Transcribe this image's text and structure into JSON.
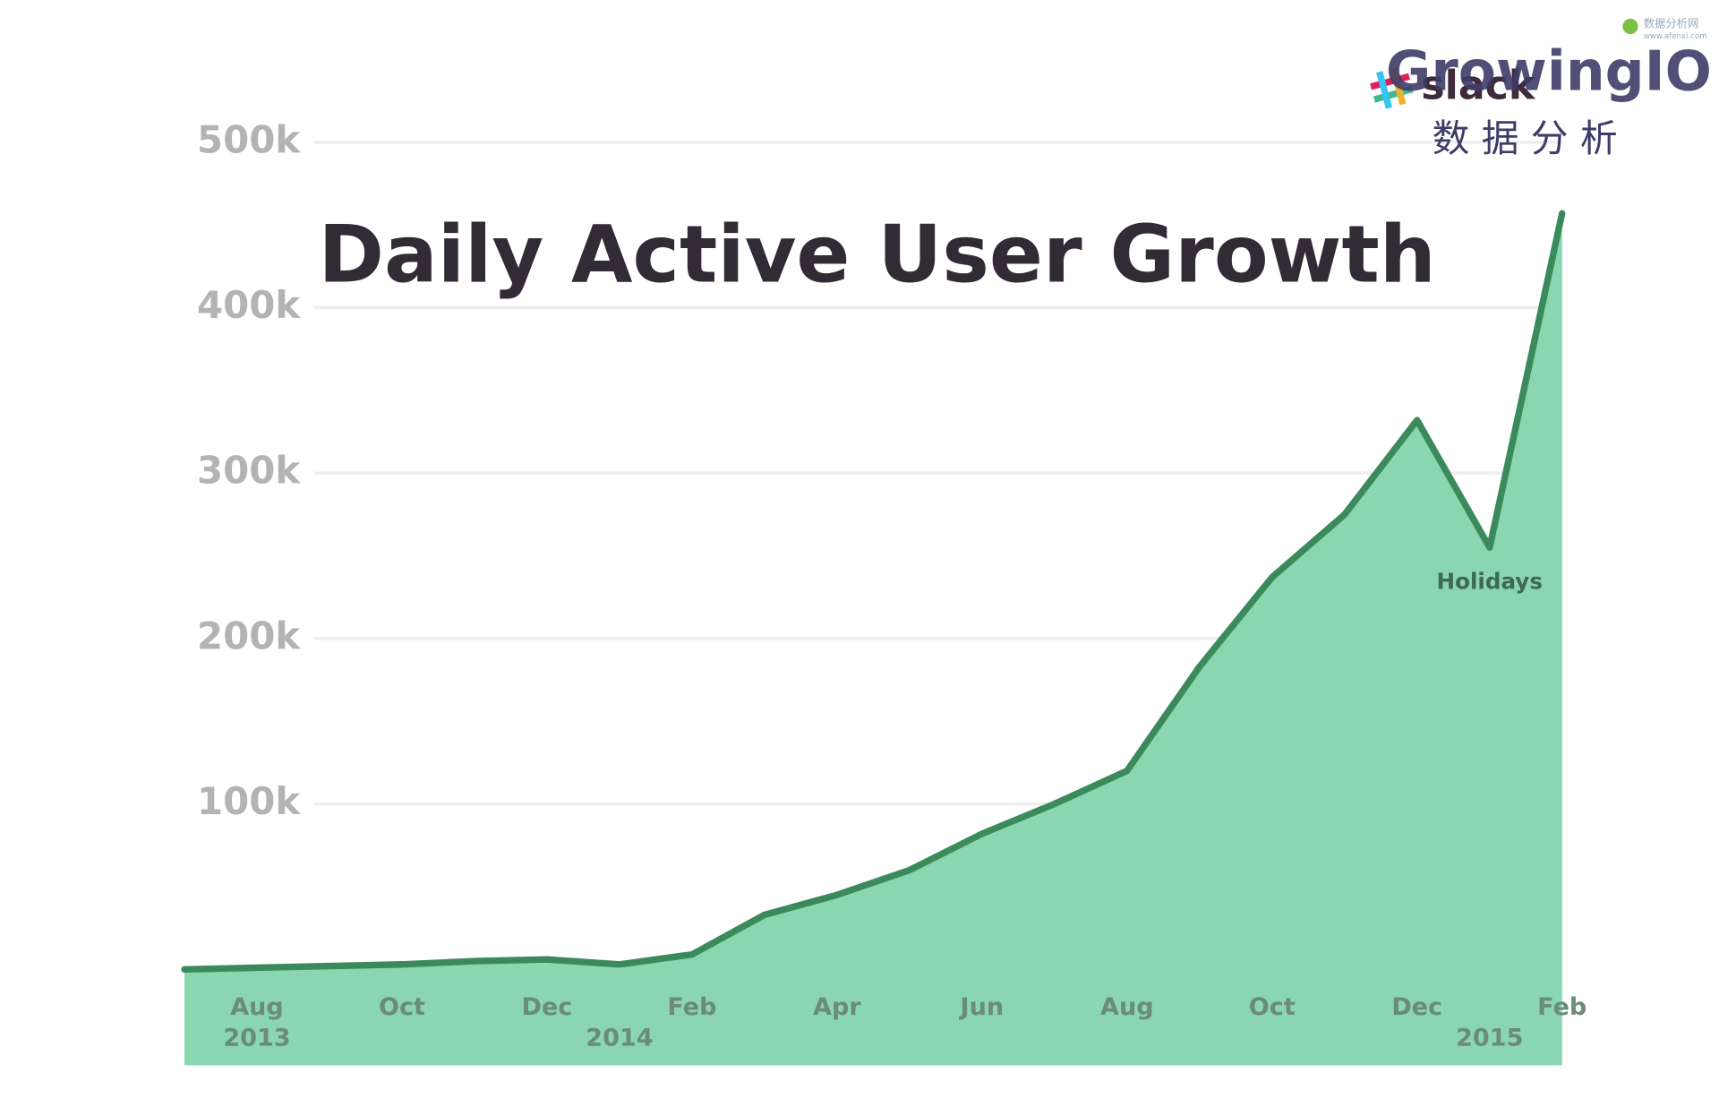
{
  "chart_data": {
    "type": "area",
    "title": "Daily Active User Growth",
    "x": [
      "2013-07",
      "2013-08",
      "2013-09",
      "2013-10",
      "2013-11",
      "2013-12",
      "2014-01",
      "2014-02",
      "2014-03",
      "2014-04",
      "2014-05",
      "2014-06",
      "2014-07",
      "2014-08",
      "2014-09",
      "2014-10",
      "2014-11",
      "2014-12",
      "2015-01",
      "2015-02"
    ],
    "values": [
      0,
      1000,
      2000,
      3000,
      5000,
      6000,
      3000,
      9000,
      33000,
      45000,
      60000,
      82000,
      100000,
      120000,
      183000,
      237000,
      275000,
      332000,
      255000,
      457000
    ],
    "color": "#8ad6b0",
    "line_color": "#3b8a5c",
    "xlim": [
      "2013-07",
      "2015-02"
    ],
    "xticks": [
      {
        "value": "2013-08",
        "label": "Aug"
      },
      {
        "value": "2013-10",
        "label": "Oct"
      },
      {
        "value": "2013-12",
        "label": "Dec"
      },
      {
        "value": "2014-02",
        "label": "Feb"
      },
      {
        "value": "2014-04",
        "label": "Apr"
      },
      {
        "value": "2014-06",
        "label": "Jun"
      },
      {
        "value": "2014-08",
        "label": "Aug"
      },
      {
        "value": "2014-10",
        "label": "Oct"
      },
      {
        "value": "2014-12",
        "label": "Dec"
      },
      {
        "value": "2015-02",
        "label": "Feb"
      }
    ],
    "year_ticks": [
      {
        "value": "2013-08",
        "label": "2013"
      },
      {
        "value": "2014-01",
        "label": "2014"
      },
      {
        "value": "2015-01",
        "label": "2015"
      }
    ],
    "ylim": [
      -58000,
      560000
    ],
    "yticks": [
      {
        "value": 100000,
        "label": "100k"
      },
      {
        "value": 200000,
        "label": "200k"
      },
      {
        "value": 300000,
        "label": "300k"
      },
      {
        "value": 400000,
        "label": "400k"
      },
      {
        "value": 500000,
        "label": "500k"
      }
    ],
    "grid": true,
    "annotations": [
      {
        "x": "2015-01",
        "text": "Holidays"
      }
    ]
  },
  "logos": {
    "slack": "slack",
    "growingio": "GrowingIO",
    "growingio_sub": "数 据 分 析",
    "watermark": "数据分析网",
    "watermark_url": "www.afenxi.com"
  }
}
